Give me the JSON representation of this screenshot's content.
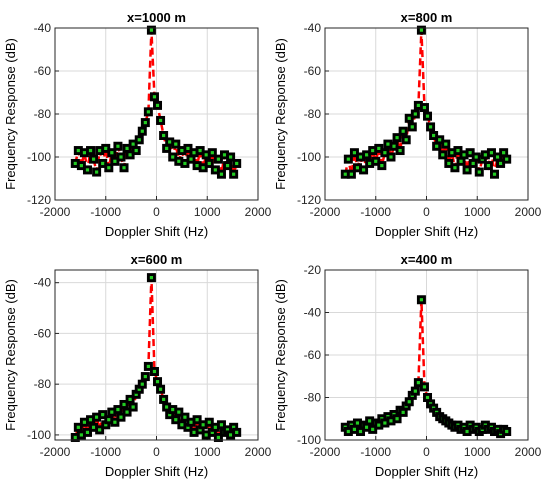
{
  "chart_data": [
    {
      "type": "line",
      "title": "x=1000 m",
      "xlabel": "Doppler Shift (Hz)",
      "ylabel": "Frequency Response (dB)",
      "xlim": [
        -2000,
        2000
      ],
      "ylim": [
        -120,
        -40
      ],
      "xticks": [
        "-2000",
        "-1000",
        "0",
        "1000",
        "2000"
      ],
      "yticks": [
        "-120",
        "-100",
        "-80",
        "-60",
        "-40"
      ],
      "grid": true,
      "line_color": "#ff0000",
      "marker_color": "#000000",
      "marker_fill": "#22cc22",
      "x": [
        -1600,
        -1540,
        -1480,
        -1420,
        -1360,
        -1300,
        -1240,
        -1180,
        -1120,
        -1060,
        -1000,
        -940,
        -880,
        -820,
        -760,
        -700,
        -640,
        -580,
        -520,
        -460,
        -400,
        -340,
        -280,
        -220,
        -160,
        -100,
        -40,
        20,
        80,
        140,
        200,
        260,
        320,
        380,
        440,
        500,
        560,
        620,
        680,
        740,
        800,
        860,
        920,
        980,
        1040,
        1100,
        1160,
        1220,
        1280,
        1340,
        1400,
        1460,
        1520,
        1580
      ],
      "y": [
        -103,
        -97,
        -104,
        -98,
        -106,
        -97,
        -101,
        -107,
        -97,
        -103,
        -96,
        -105,
        -98,
        -102,
        -95,
        -100,
        -105,
        -96,
        -99,
        -94,
        -97,
        -92,
        -88,
        -84,
        -79,
        -41,
        -72,
        -76,
        -83,
        -90,
        -96,
        -93,
        -100,
        -94,
        -102,
        -97,
        -103,
        -96,
        -101,
        -98,
        -104,
        -97,
        -105,
        -99,
        -103,
        -98,
        -106,
        -101,
        -108,
        -99,
        -104,
        -100,
        -108,
        -103
      ]
    },
    {
      "type": "line",
      "title": "x=800 m",
      "xlabel": "Doppler Shift (Hz)",
      "ylabel": "Frequency Response (dB)",
      "xlim": [
        -2000,
        2000
      ],
      "ylim": [
        -120,
        -40
      ],
      "xticks": [
        "-2000",
        "-1000",
        "0",
        "1000",
        "2000"
      ],
      "yticks": [
        "-120",
        "-100",
        "-80",
        "-60",
        "-40"
      ],
      "grid": true,
      "line_color": "#ff0000",
      "marker_color": "#000000",
      "marker_fill": "#22cc22",
      "x": [
        -1600,
        -1540,
        -1480,
        -1420,
        -1360,
        -1300,
        -1240,
        -1180,
        -1120,
        -1060,
        -1000,
        -940,
        -880,
        -820,
        -760,
        -700,
        -640,
        -580,
        -520,
        -460,
        -400,
        -340,
        -280,
        -220,
        -160,
        -100,
        -40,
        20,
        80,
        140,
        200,
        260,
        320,
        380,
        440,
        500,
        560,
        620,
        680,
        740,
        800,
        860,
        920,
        980,
        1040,
        1100,
        1160,
        1220,
        1280,
        1340,
        1400,
        1460,
        1520,
        1580
      ],
      "y": [
        -108,
        -101,
        -108,
        -98,
        -105,
        -100,
        -106,
        -99,
        -103,
        -97,
        -102,
        -96,
        -104,
        -98,
        -94,
        -100,
        -95,
        -91,
        -97,
        -88,
        -92,
        -82,
        -86,
        -80,
        -76,
        -41,
        -77,
        -81,
        -86,
        -90,
        -95,
        -92,
        -99,
        -94,
        -103,
        -98,
        -105,
        -97,
        -102,
        -99,
        -106,
        -98,
        -103,
        -100,
        -107,
        -101,
        -99,
        -104,
        -98,
        -108,
        -100,
        -103,
        -98,
        -101
      ]
    },
    {
      "type": "line",
      "title": "x=600 m",
      "xlabel": "Doppler Shift (Hz)",
      "ylabel": "Frequency Response (dB)",
      "xlim": [
        -2000,
        2000
      ],
      "ylim": [
        -102,
        -35
      ],
      "xticks": [
        "-2000",
        "-1000",
        "0",
        "1000",
        "2000"
      ],
      "yticks": [
        "-100",
        "-80",
        "-60",
        "-40"
      ],
      "grid": true,
      "line_color": "#ff0000",
      "marker_color": "#000000",
      "marker_fill": "#22cc22",
      "x": [
        -1600,
        -1540,
        -1480,
        -1420,
        -1360,
        -1300,
        -1240,
        -1180,
        -1120,
        -1060,
        -1000,
        -940,
        -880,
        -820,
        -760,
        -700,
        -640,
        -580,
        -520,
        -460,
        -400,
        -340,
        -280,
        -220,
        -160,
        -100,
        -40,
        20,
        80,
        140,
        200,
        260,
        320,
        380,
        440,
        500,
        560,
        620,
        680,
        740,
        800,
        860,
        920,
        980,
        1040,
        1100,
        1160,
        1220,
        1280,
        1340,
        1400,
        1460,
        1520,
        1580
      ],
      "y": [
        -101,
        -97,
        -100,
        -95,
        -99,
        -94,
        -97,
        -93,
        -98,
        -92,
        -96,
        -94,
        -91,
        -95,
        -90,
        -93,
        -88,
        -91,
        -86,
        -89,
        -84,
        -82,
        -80,
        -77,
        -73,
        -38,
        -75,
        -79,
        -82,
        -86,
        -89,
        -92,
        -90,
        -94,
        -91,
        -96,
        -93,
        -97,
        -95,
        -99,
        -94,
        -98,
        -96,
        -100,
        -95,
        -99,
        -97,
        -101,
        -96,
        -99,
        -98,
        -100,
        -97,
        -99
      ]
    },
    {
      "type": "line",
      "title": "x=400 m",
      "xlabel": "Doppler Shift (Hz)",
      "ylabel": "Frequency Response (dB)",
      "xlim": [
        -2000,
        2000
      ],
      "ylim": [
        -100,
        -20
      ],
      "xticks": [
        "-2000",
        "-1000",
        "0",
        "1000",
        "2000"
      ],
      "yticks": [
        "-100",
        "-80",
        "-60",
        "-40",
        "-20"
      ],
      "grid": true,
      "line_color": "#ff0000",
      "marker_color": "#000000",
      "marker_fill": "#22cc22",
      "x": [
        -1600,
        -1540,
        -1480,
        -1420,
        -1360,
        -1300,
        -1240,
        -1180,
        -1120,
        -1060,
        -1000,
        -940,
        -880,
        -820,
        -760,
        -700,
        -640,
        -580,
        -520,
        -460,
        -400,
        -340,
        -280,
        -220,
        -160,
        -100,
        -40,
        20,
        80,
        140,
        200,
        260,
        320,
        380,
        440,
        500,
        560,
        620,
        680,
        740,
        800,
        860,
        920,
        980,
        1040,
        1100,
        1160,
        1220,
        1280,
        1340,
        1400,
        1460,
        1520,
        1580
      ],
      "y": [
        -94,
        -96,
        -93,
        -95,
        -92,
        -96,
        -93,
        -94,
        -91,
        -95,
        -92,
        -93,
        -90,
        -92,
        -89,
        -91,
        -88,
        -90,
        -86,
        -87,
        -84,
        -82,
        -79,
        -77,
        -73,
        -34,
        -75,
        -80,
        -83,
        -85,
        -87,
        -89,
        -90,
        -91,
        -92,
        -93,
        -94,
        -93,
        -95,
        -94,
        -96,
        -93,
        -95,
        -94,
        -96,
        -95,
        -93,
        -95,
        -94,
        -96,
        -95,
        -97,
        -95,
        -96
      ]
    }
  ]
}
